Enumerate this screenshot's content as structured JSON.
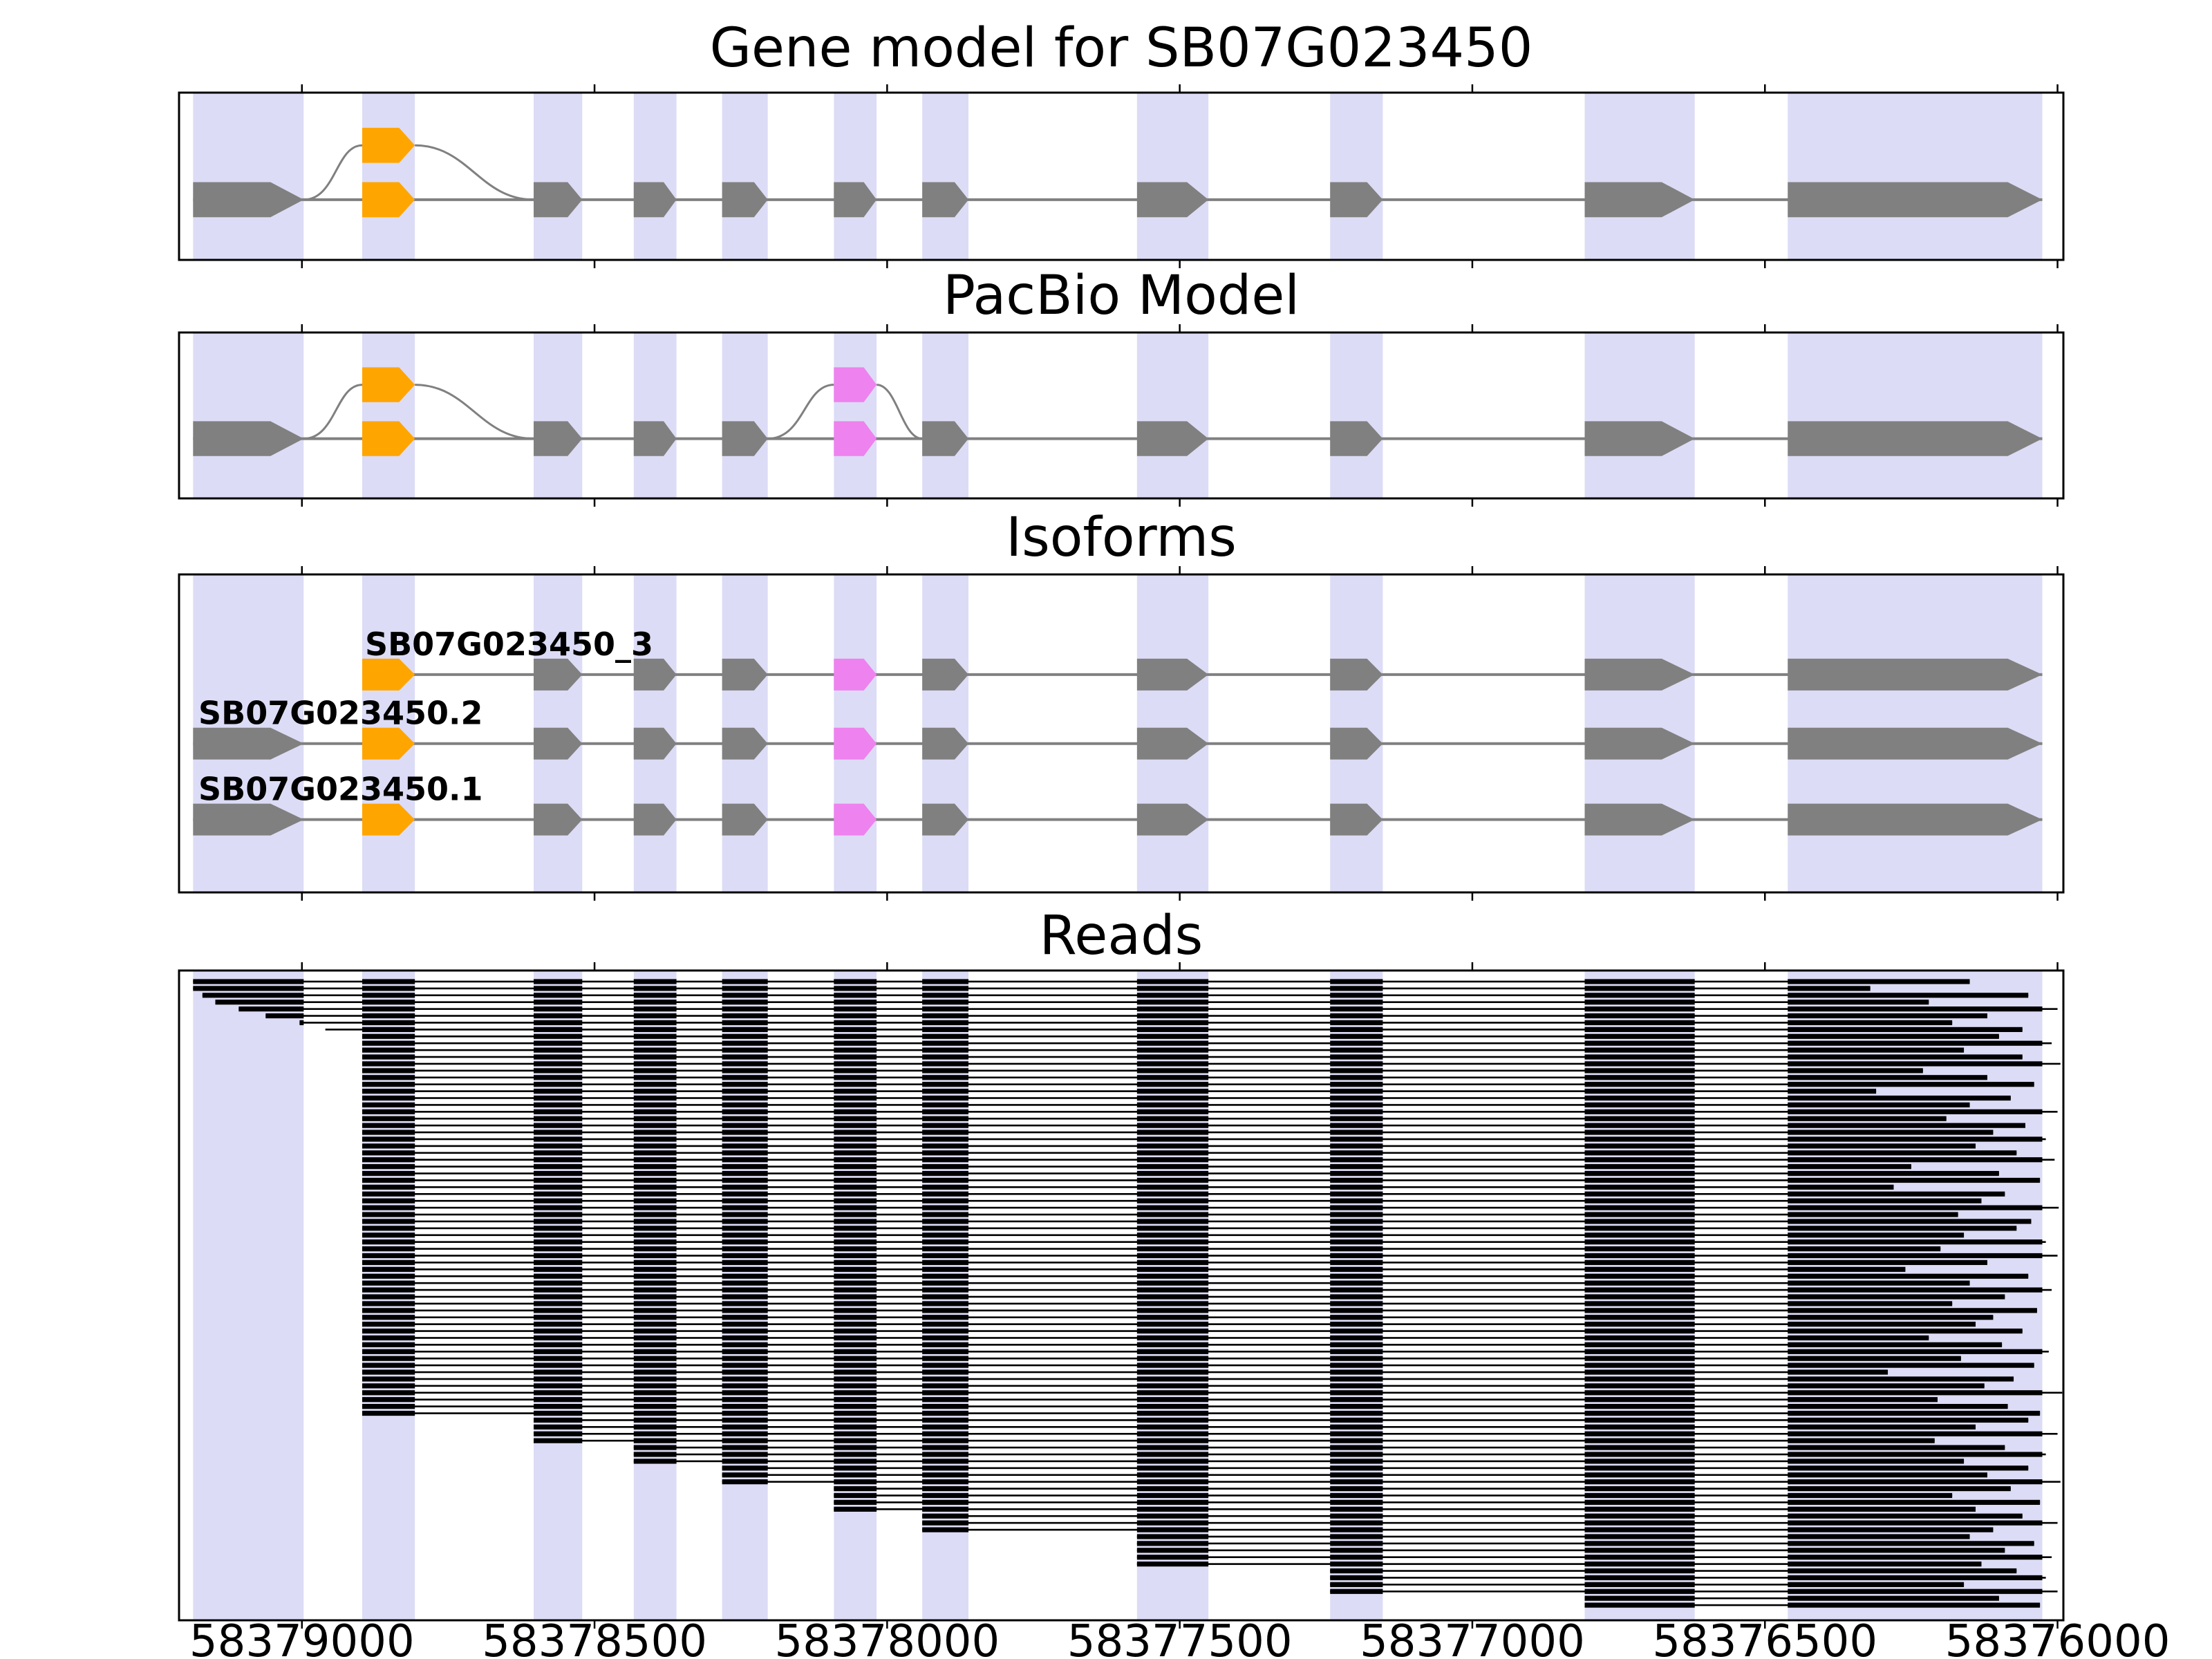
{
  "figure": {
    "background": "#ffffff",
    "border_color": "#000000",
    "band_color": "#dcdcf6",
    "exon_color": "#808080",
    "intron_color": "#808080",
    "orange": "#ffa500",
    "violet": "#ee82ee",
    "read_color": "#000000",
    "text_color": "#000000"
  },
  "chart_data": {
    "type": "genome-browser",
    "gene": "SB07G023450",
    "strand": "-",
    "axis": {
      "xlim": [
        58379210,
        58375990
      ],
      "direction": "decreasing-left-to-right",
      "ticks": [
        58379000,
        58378500,
        58378000,
        58377500,
        58377000,
        58376500,
        58376000
      ],
      "tick_labels": [
        "58379000",
        "58378500",
        "58378000",
        "58377500",
        "58377000",
        "58376500",
        "58376000"
      ]
    },
    "exons": [
      {
        "id": "E1",
        "start": 58379186,
        "end": 58378997
      },
      {
        "id": "E2",
        "start": 58378897,
        "end": 58378807
      },
      {
        "id": "E3",
        "start": 58378604,
        "end": 58378521
      },
      {
        "id": "E4",
        "start": 58378433,
        "end": 58378360
      },
      {
        "id": "E5",
        "start": 58378282,
        "end": 58378204
      },
      {
        "id": "E6",
        "start": 58378091,
        "end": 58378018
      },
      {
        "id": "E7",
        "start": 58377940,
        "end": 58377861
      },
      {
        "id": "E8",
        "start": 58377573,
        "end": 58377451
      },
      {
        "id": "E9",
        "start": 58377243,
        "end": 58377153
      },
      {
        "id": "E10",
        "start": 58376808,
        "end": 58376620
      },
      {
        "id": "E11",
        "start": 58376461,
        "end": 58376026
      }
    ],
    "panels": {
      "gene_model": {
        "title": "Gene model for SB07G023450",
        "exon_ids": [
          "E1",
          "E2",
          "E3",
          "E4",
          "E5",
          "E6",
          "E7",
          "E8",
          "E9",
          "E10",
          "E11"
        ],
        "exon_colors": {
          "E2": "orange"
        },
        "bubbles": [
          {
            "exon": "E2",
            "color": "orange",
            "from": "E1",
            "to": "E3"
          }
        ]
      },
      "pacbio": {
        "title": "PacBio Model",
        "exon_ids": [
          "E1",
          "E2",
          "E3",
          "E4",
          "E5",
          "E6",
          "E7",
          "E8",
          "E9",
          "E10",
          "E11"
        ],
        "exon_colors": {
          "E2": "orange",
          "E6": "violet"
        },
        "bubbles": [
          {
            "exon": "E2",
            "color": "orange",
            "from": "E1",
            "to": "E3"
          },
          {
            "exon": "E6",
            "color": "violet",
            "from": "E5",
            "to": "E7"
          }
        ]
      },
      "isoforms": {
        "title": "Isoforms",
        "rows": [
          {
            "label": "SB07G023450_3",
            "label_anchor": "first-exon",
            "exon_ids": [
              "E2",
              "E3",
              "E4",
              "E5",
              "E6",
              "E7",
              "E8",
              "E9",
              "E10",
              "E11"
            ],
            "exon_colors": {
              "E2": "orange",
              "E6": "violet"
            }
          },
          {
            "label": "SB07G023450.2",
            "label_anchor": "panel-left",
            "exon_ids": [
              "E1",
              "E2",
              "E3",
              "E4",
              "E5",
              "E6",
              "E7",
              "E8",
              "E9",
              "E10",
              "E11"
            ],
            "exon_colors": {
              "E2": "orange",
              "E6": "violet"
            }
          },
          {
            "label": "SB07G023450.1",
            "label_anchor": "panel-left",
            "exon_ids": [
              "E1",
              "E2",
              "E3",
              "E4",
              "E5",
              "E6",
              "E7",
              "E8",
              "E9",
              "E10",
              "E11"
            ],
            "exon_colors": {
              "E2": "orange",
              "E6": "violet"
            }
          }
        ]
      },
      "reads": {
        "title": "Reads",
        "reads": [
          [
            58379186,
            58376150
          ],
          [
            58379186,
            58376320
          ],
          [
            58379170,
            58376050
          ],
          [
            58379148,
            58376220
          ],
          [
            58379108,
            58376000
          ],
          [
            58379062,
            58376120
          ],
          [
            58379004,
            58376180
          ],
          [
            58378960,
            58376060
          ],
          [
            58378897,
            58376100
          ],
          [
            58378897,
            58376010
          ],
          [
            58378897,
            58376160
          ],
          [
            58378897,
            58376060
          ],
          [
            58378897,
            58375995
          ],
          [
            58378897,
            58376230
          ],
          [
            58378897,
            58376120
          ],
          [
            58378897,
            58376040
          ],
          [
            58378897,
            58376310
          ],
          [
            58378897,
            58376080
          ],
          [
            58378897,
            58376150
          ],
          [
            58378897,
            58376000
          ],
          [
            58378897,
            58376190
          ],
          [
            58378897,
            58376055
          ],
          [
            58378897,
            58376110
          ],
          [
            58378897,
            58376020
          ],
          [
            58378897,
            58376140
          ],
          [
            58378897,
            58376070
          ],
          [
            58378897,
            58376005
          ],
          [
            58378897,
            58376250
          ],
          [
            58378897,
            58376100
          ],
          [
            58378897,
            58376030
          ],
          [
            58378897,
            58376280
          ],
          [
            58378897,
            58376090
          ],
          [
            58378897,
            58376130
          ],
          [
            58378897,
            58375998
          ],
          [
            58378897,
            58376170
          ],
          [
            58378897,
            58376045
          ],
          [
            58378897,
            58376070
          ],
          [
            58378897,
            58376160
          ],
          [
            58378897,
            58376020
          ],
          [
            58378897,
            58376200
          ],
          [
            58378897,
            58376000
          ],
          [
            58378897,
            58376120
          ],
          [
            58378897,
            58376260
          ],
          [
            58378897,
            58376050
          ],
          [
            58378897,
            58376150
          ],
          [
            58378897,
            58376010
          ],
          [
            58378897,
            58376090
          ],
          [
            58378897,
            58376180
          ],
          [
            58378897,
            58376035
          ],
          [
            58378897,
            58376110
          ],
          [
            58378897,
            58376140
          ],
          [
            58378897,
            58376060
          ],
          [
            58378897,
            58376220
          ],
          [
            58378897,
            58376095
          ],
          [
            58378897,
            58376015
          ],
          [
            58378897,
            58376165
          ],
          [
            58378897,
            58376040
          ],
          [
            58378897,
            58376290
          ],
          [
            58378897,
            58376075
          ],
          [
            58378897,
            58376125
          ],
          [
            58378897,
            58375992
          ],
          [
            58378897,
            58376205
          ],
          [
            58378897,
            58376085
          ],
          [
            58378897,
            58376030
          ],
          [
            58378604,
            58376050
          ],
          [
            58378604,
            58376140
          ],
          [
            58378604,
            58376000
          ],
          [
            58378604,
            58376210
          ],
          [
            58378433,
            58376090
          ],
          [
            58378433,
            58376020
          ],
          [
            58378433,
            58376160
          ],
          [
            58378282,
            58376050
          ],
          [
            58378282,
            58376120
          ],
          [
            58378282,
            58375995
          ],
          [
            58378091,
            58376080
          ],
          [
            58378091,
            58376180
          ],
          [
            58378091,
            58376030
          ],
          [
            58378091,
            58376140
          ],
          [
            58377940,
            58376060
          ],
          [
            58377940,
            58376000
          ],
          [
            58377940,
            58376110
          ],
          [
            58377573,
            58376150
          ],
          [
            58377573,
            58376040
          ],
          [
            58377573,
            58376090
          ],
          [
            58377573,
            58376010
          ],
          [
            58377573,
            58376130
          ],
          [
            58377243,
            58376070
          ],
          [
            58377243,
            58376020
          ],
          [
            58377243,
            58376160
          ],
          [
            58377243,
            58376000
          ],
          [
            58376808,
            58376100
          ],
          [
            58376808,
            58376030
          ]
        ]
      }
    }
  }
}
